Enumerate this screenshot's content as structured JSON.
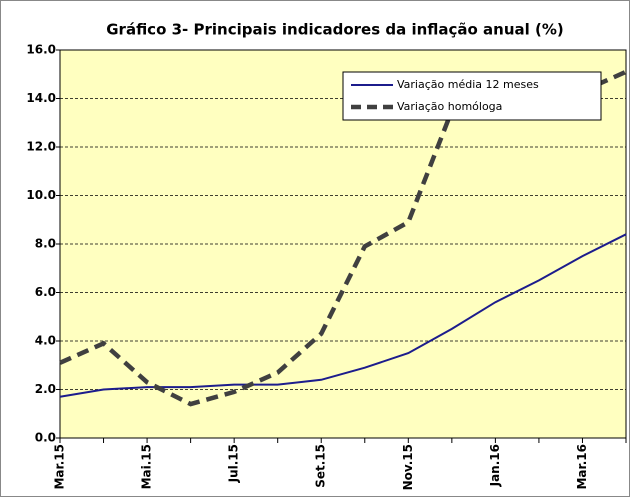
{
  "chart_data": {
    "type": "line",
    "title": "Gráfico 3- Principais indicadores da inflação anual (%)",
    "categories": [
      "Mar.15",
      null,
      "Mai.15",
      null,
      "Jul.15",
      null,
      "Set.15",
      null,
      "Nov.15",
      null,
      "Jan.16",
      null,
      "Mar.16",
      null
    ],
    "series": [
      {
        "name": "Variação média 12 meses",
        "color": "#1c1c8c",
        "dash": false,
        "values": [
          1.7,
          2.0,
          2.1,
          2.1,
          2.2,
          2.2,
          2.4,
          2.9,
          3.5,
          4.5,
          5.6,
          6.5,
          7.5,
          8.4
        ]
      },
      {
        "name": "Variação homóloga",
        "color": "#404040",
        "dash": true,
        "values": [
          3.1,
          3.9,
          2.3,
          1.4,
          1.9,
          2.7,
          4.3,
          7.9,
          8.9,
          13.5,
          14.1,
          14.0,
          14.3,
          15.1
        ]
      }
    ],
    "ylim": [
      0,
      16
    ],
    "yticks": [
      {
        "value": 0,
        "label": "0.0"
      },
      {
        "value": 2,
        "label": "2.0"
      },
      {
        "value": 4,
        "label": "4.0"
      },
      {
        "value": 6,
        "label": "6.0"
      },
      {
        "value": 8,
        "label": "8.0"
      },
      {
        "value": 10,
        "label": "10.0"
      },
      {
        "value": 12,
        "label": "12.0"
      },
      {
        "value": 14,
        "label": "14.0"
      },
      {
        "value": 16,
        "label": "16.0"
      }
    ],
    "grid": true
  }
}
